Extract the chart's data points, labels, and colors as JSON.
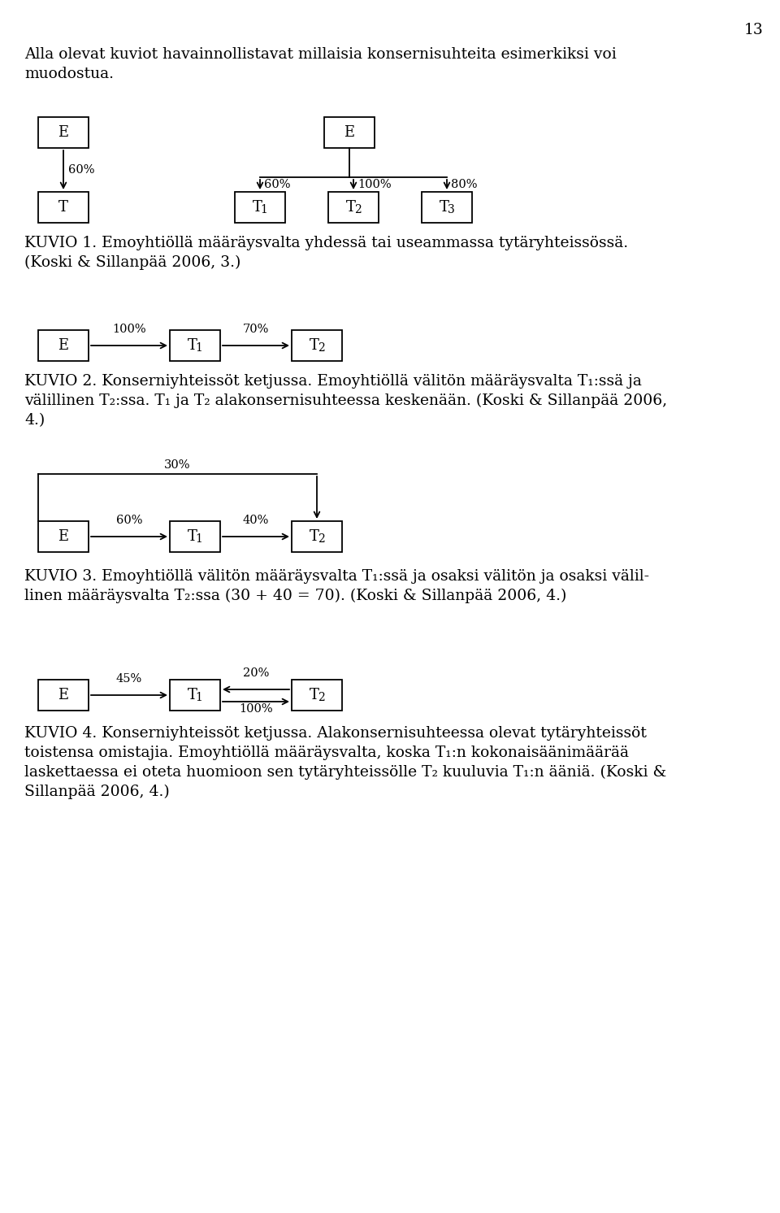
{
  "page_number": "13",
  "bg_color": "#ffffff",
  "text_color": "#000000",
  "intro_text_line1": "Alla olevat kuviot havainnollistavat millaisia konsernisuhteita esimerkiksi voi",
  "intro_text_line2": "muodostua.",
  "fig1_caption_line1": "KUVIO 1. Emoyhtiöllä määräysvalta yhdessä tai useammassa tytäryhteissössä.",
  "fig1_caption_line2": "(Koski & Sillanpää 2006, 3.)",
  "fig2_caption_line1": "KUVIO 2. Konserniyhteissöt ketjussa. Emoyhtiöllä välitön määräysvalta T₁:ssä ja",
  "fig2_caption_line2": "välillinen T₂:ssa. T₁ ja T₂ alakonsernisuhteessa keskenään. (Koski & Sillanpää 2006,",
  "fig2_caption_line3": "4.)",
  "fig3_caption_line1": "KUVIO 3. Emoyhtiöllä välitön määräysvalta T₁:ssä ja osaksi välitön ja osaksi välil-",
  "fig3_caption_line2": "linen määräysvalta T₂:ssa (30 + 40 = 70). (Koski & Sillanpää 2006, 4.)",
  "fig4_caption_line1": "KUVIO 4. Konserniyhteissöt ketjussa. Alakonsernisuhteessa olevat tytäryhteissöt",
  "fig4_caption_line2": "toistensa omistajia. Emoyhtiöllä määräysvalta, koska T₁:n kokonaisäänimäärää",
  "fig4_caption_line3": "laskettaessa ei oteta huomioon sen tytäryhteissölle T₂ kuuluvia T₁:n ääniä. (Koski &",
  "fig4_caption_line4": "Sillanpää 2006, 4.)"
}
